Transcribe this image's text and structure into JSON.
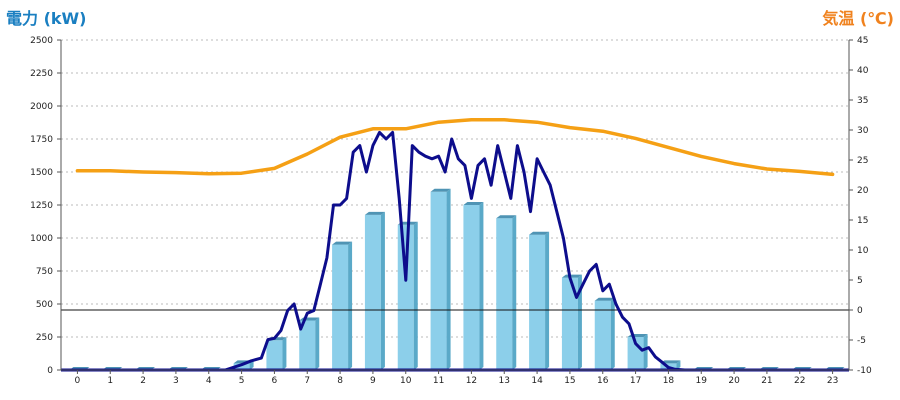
{
  "chart_data": {
    "type": "bar",
    "title_left": "電力 (kW)",
    "title_right": "気温 (℃)",
    "x_ticks": [
      "0",
      "1",
      "2",
      "3",
      "4",
      "5",
      "6",
      "7",
      "8",
      "9",
      "10",
      "11",
      "12",
      "13",
      "14",
      "15",
      "16",
      "17",
      "18",
      "19",
      "20",
      "21",
      "22",
      "23"
    ],
    "y_left_ticks": [
      "0",
      "250",
      "500",
      "750",
      "1000",
      "1250",
      "1500",
      "1750",
      "2000",
      "2250",
      "2500"
    ],
    "y_right_ticks": [
      "-10",
      "-5",
      "0",
      "5",
      "10",
      "15",
      "20",
      "25",
      "30",
      "35",
      "40",
      "45"
    ],
    "ylim_left": [
      0,
      2500
    ],
    "ylim_right": [
      -10,
      45
    ],
    "xlim": [
      -0.5,
      23.5
    ],
    "grid": true,
    "zero_line_right": 0,
    "series": [
      {
        "kind": "bar",
        "axis": "left",
        "x": [
          0,
          1,
          2,
          3,
          4,
          5,
          6,
          7,
          8,
          9,
          10,
          11,
          12,
          13,
          14,
          15,
          16,
          17,
          18,
          19,
          20,
          21,
          22,
          23
        ],
        "values": [
          0,
          0,
          0,
          0,
          0,
          50,
          225,
          375,
          950,
          1175,
          1100,
          1350,
          1250,
          1150,
          1025,
          700,
          525,
          250,
          50,
          0,
          0,
          0,
          0,
          0
        ]
      },
      {
        "kind": "line",
        "axis": "left",
        "x": [
          4.5,
          5.0,
          5.3,
          5.6,
          5.8,
          6.0,
          6.2,
          6.4,
          6.6,
          6.8,
          7.0,
          7.2,
          7.4,
          7.6,
          7.8,
          8.0,
          8.2,
          8.4,
          8.6,
          8.8,
          9.0,
          9.2,
          9.4,
          9.6,
          9.8,
          10.0,
          10.2,
          10.4,
          10.6,
          10.8,
          11.0,
          11.2,
          11.4,
          11.6,
          11.8,
          12.0,
          12.2,
          12.4,
          12.6,
          12.8,
          13.0,
          13.2,
          13.4,
          13.6,
          13.8,
          14.0,
          14.2,
          14.4,
          14.6,
          14.8,
          15.0,
          15.2,
          15.4,
          15.6,
          15.8,
          16.0,
          16.2,
          16.4,
          16.6,
          16.8,
          17.0,
          17.2,
          17.4,
          17.6,
          17.8,
          18.0,
          18.2,
          18.5
        ],
        "values": [
          0,
          40,
          70,
          90,
          230,
          240,
          300,
          450,
          500,
          310,
          430,
          450,
          650,
          850,
          1250,
          1250,
          1300,
          1650,
          1700,
          1500,
          1700,
          1800,
          1750,
          1800,
          1300,
          680,
          1700,
          1650,
          1620,
          1600,
          1620,
          1500,
          1750,
          1600,
          1550,
          1300,
          1550,
          1600,
          1400,
          1700,
          1500,
          1300,
          1700,
          1500,
          1200,
          1600,
          1500,
          1400,
          1200,
          1000,
          700,
          550,
          650,
          750,
          800,
          600,
          650,
          500,
          400,
          350,
          200,
          150,
          170,
          100,
          60,
          20,
          5,
          0
        ]
      },
      {
        "kind": "line",
        "axis": "right",
        "x": [
          0,
          1,
          2,
          3,
          4,
          5,
          6,
          7,
          8,
          9,
          10,
          11,
          12,
          13,
          14,
          15,
          16,
          17,
          18,
          19,
          20,
          21,
          22,
          23
        ],
        "values": [
          23.2,
          23.2,
          23.0,
          22.9,
          22.7,
          22.8,
          23.6,
          26.0,
          28.8,
          30.2,
          30.2,
          31.3,
          31.7,
          31.7,
          31.3,
          30.4,
          29.8,
          28.6,
          27.1,
          25.6,
          24.4,
          23.5,
          23.1,
          22.6
        ]
      }
    ],
    "colors": {
      "bar_front": "#8ccfea",
      "bar_side": "#5aa9c8",
      "bar_top": "#4f94b4",
      "power_line": "#0d0d8c",
      "temperature_line": "#f5a015",
      "grid": "#bbbbbb",
      "axis": "#555555",
      "zero_line": "#111111"
    }
  }
}
